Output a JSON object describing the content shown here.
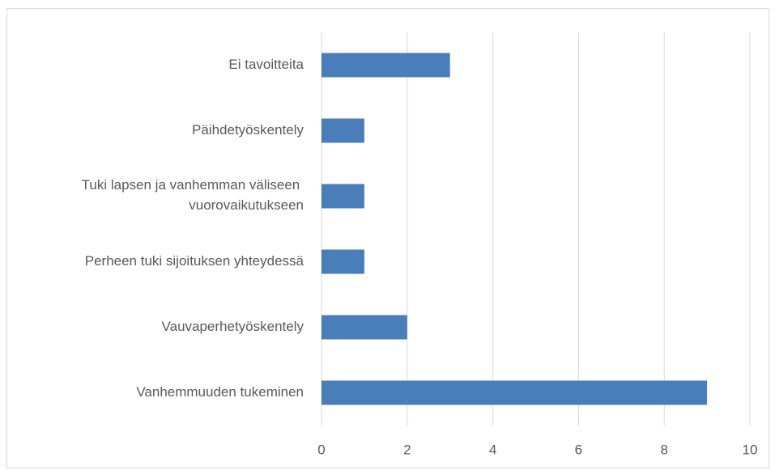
{
  "chart_data": {
    "type": "bar",
    "orientation": "horizontal",
    "categories": [
      "Ei tavoitteita",
      "Päihdetyöskentely",
      "Tuki lapsen ja vanhemman väliseen vuorovaikutukseen",
      "Perheen tuki sijoituksen yhteydessä",
      "Vauvaperhetyöskentely",
      "Vanhemmuuden tukeminen"
    ],
    "values": [
      3,
      1,
      1,
      1,
      2,
      9
    ],
    "color": "#4a7ebb",
    "xlim": [
      0,
      10
    ],
    "xticks": [
      0,
      2,
      4,
      6,
      8,
      10
    ],
    "grid": true
  }
}
